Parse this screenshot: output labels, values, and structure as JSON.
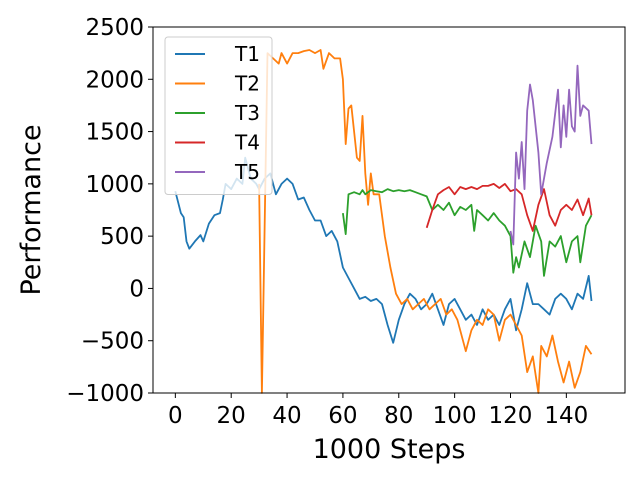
{
  "chart_data": {
    "type": "line",
    "xlabel": "1000 Steps",
    "ylabel": "Performance",
    "xlim": [
      -8,
      161
    ],
    "ylim": [
      -1000,
      2500
    ],
    "xticks": [
      0,
      20,
      40,
      60,
      80,
      100,
      120,
      140
    ],
    "yticks": [
      {
        "value": -1000,
        "label": "−1000"
      },
      {
        "value": -500,
        "label": "−500"
      },
      0,
      500,
      1000,
      1500,
      2000,
      2500
    ],
    "legend": "upper left",
    "series": [
      {
        "name": "T1",
        "color": "#1f77b4",
        "x": [
          0,
          2,
          3,
          4,
          5,
          7,
          9,
          10,
          12,
          14,
          16,
          17,
          18,
          20,
          22,
          24,
          25,
          27,
          29,
          30,
          32,
          34,
          36,
          38,
          40,
          42,
          44,
          46,
          48,
          50,
          52,
          54,
          56,
          58,
          60,
          62,
          64,
          66,
          68,
          70,
          72,
          74,
          76,
          78,
          80,
          82,
          84,
          86,
          88,
          90,
          92,
          94,
          96,
          98,
          100,
          102,
          104,
          106,
          108,
          110,
          112,
          114,
          116,
          118,
          120,
          122,
          124,
          126,
          128,
          130,
          132,
          134,
          136,
          138,
          140,
          142,
          144,
          146,
          148,
          149
        ],
        "values": [
          930,
          720,
          680,
          450,
          380,
          450,
          510,
          450,
          620,
          700,
          720,
          850,
          1000,
          950,
          1050,
          1000,
          1250,
          1050,
          1000,
          950,
          1050,
          1100,
          900,
          1000,
          1050,
          1000,
          850,
          870,
          750,
          650,
          650,
          500,
          550,
          450,
          200,
          100,
          0,
          -100,
          -80,
          -120,
          -100,
          -150,
          -350,
          -520,
          -300,
          -150,
          -50,
          -100,
          -200,
          -150,
          -50,
          -200,
          -350,
          -150,
          -100,
          -200,
          -300,
          -250,
          -350,
          -200,
          -300,
          -250,
          -350,
          -200,
          -100,
          -400,
          -200,
          50,
          -150,
          -150,
          -200,
          -250,
          -100,
          -50,
          -100,
          -200,
          -50,
          -100,
          120,
          -120
        ]
      },
      {
        "name": "T2",
        "color": "#ff7f0e",
        "x": [
          30,
          31,
          33,
          35,
          37,
          38,
          40,
          42,
          44,
          46,
          48,
          50,
          52,
          53,
          55,
          57,
          59,
          60,
          61,
          62,
          63,
          65,
          66,
          67,
          68,
          69,
          70,
          71,
          73,
          75,
          77,
          79,
          81,
          83,
          85,
          87,
          89,
          91,
          93,
          95,
          97,
          99,
          101,
          103,
          104,
          106,
          108,
          110,
          112,
          114,
          116,
          118,
          120,
          122,
          124,
          126,
          128,
          130,
          131,
          133,
          135,
          137,
          139,
          141,
          143,
          145,
          147,
          149
        ],
        "values": [
          1000,
          -1000,
          2250,
          2200,
          2150,
          2250,
          2150,
          2250,
          2250,
          2270,
          2280,
          2250,
          2280,
          2100,
          2250,
          2200,
          2200,
          2000,
          1380,
          1720,
          1750,
          1250,
          1220,
          1650,
          1100,
          800,
          1100,
          900,
          900,
          500,
          200,
          -50,
          -150,
          -100,
          -200,
          -150,
          -100,
          -200,
          -150,
          -100,
          -250,
          -200,
          -300,
          -500,
          -600,
          -400,
          -300,
          -350,
          -200,
          -250,
          -500,
          -300,
          -250,
          -350,
          -450,
          -800,
          -650,
          -1000,
          -550,
          -650,
          -450,
          -700,
          -900,
          -700,
          -950,
          -800,
          -550,
          -630
        ]
      },
      {
        "name": "T3",
        "color": "#2ca02c",
        "x": [
          60,
          61,
          62,
          64,
          66,
          67,
          68,
          70,
          72,
          74,
          76,
          78,
          80,
          82,
          84,
          86,
          88,
          90,
          92,
          94,
          96,
          98,
          100,
          102,
          104,
          106,
          107,
          108,
          110,
          112,
          114,
          116,
          118,
          120,
          121,
          122,
          123,
          125,
          127,
          129,
          131,
          132,
          134,
          136,
          138,
          140,
          142,
          144,
          145,
          147,
          149
        ],
        "values": [
          720,
          520,
          900,
          920,
          900,
          940,
          900,
          940,
          930,
          920,
          950,
          930,
          940,
          930,
          940,
          920,
          900,
          880,
          750,
          800,
          750,
          820,
          700,
          780,
          750,
          800,
          550,
          750,
          700,
          650,
          720,
          650,
          600,
          500,
          150,
          300,
          200,
          450,
          300,
          600,
          450,
          120,
          450,
          400,
          500,
          250,
          450,
          500,
          250,
          600,
          700
        ]
      },
      {
        "name": "T4",
        "color": "#d62728",
        "x": [
          90,
          92,
          94,
          96,
          98,
          100,
          102,
          104,
          106,
          108,
          110,
          112,
          114,
          116,
          118,
          120,
          122,
          124,
          126,
          128,
          130,
          132,
          134,
          136,
          138,
          140,
          142,
          144,
          146,
          148,
          149
        ],
        "values": [
          580,
          750,
          900,
          940,
          970,
          900,
          970,
          950,
          970,
          950,
          980,
          980,
          1000,
          960,
          1000,
          930,
          950,
          900,
          700,
          550,
          800,
          950,
          700,
          600,
          750,
          800,
          750,
          850,
          700,
          860,
          700
        ]
      },
      {
        "name": "T5",
        "color": "#9467bd",
        "x": [
          120,
          121,
          122,
          123,
          124,
          125,
          126,
          127,
          128,
          130,
          131,
          133,
          135,
          137,
          138,
          139,
          140,
          141,
          142,
          143,
          144,
          145,
          146,
          148,
          149
        ],
        "values": [
          550,
          420,
          1300,
          1050,
          1400,
          950,
          1700,
          1950,
          1800,
          1300,
          900,
          1200,
          1450,
          1900,
          1350,
          1750,
          1450,
          1900,
          1550,
          1500,
          2130,
          1650,
          1750,
          1700,
          1380
        ]
      }
    ]
  }
}
